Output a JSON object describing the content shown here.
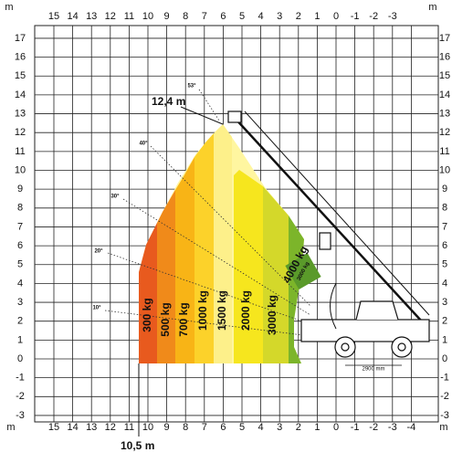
{
  "axis": {
    "unit": "m",
    "top_x": [
      15,
      14,
      13,
      12,
      11,
      10,
      9,
      8,
      7,
      6,
      5,
      4,
      3,
      2,
      1,
      0,
      -1,
      -2,
      -3
    ],
    "bottom_x": [
      15,
      14,
      13,
      12,
      11,
      10,
      9,
      8,
      7,
      6,
      5,
      4,
      3,
      2,
      1,
      0,
      -1,
      -2,
      -3,
      -4
    ],
    "y": [
      17,
      16,
      15,
      14,
      13,
      12,
      11,
      10,
      9,
      8,
      7,
      6,
      5,
      4,
      3,
      2,
      1,
      0,
      -1,
      -2,
      -3
    ]
  },
  "loads": [
    "300 kg",
    "500 kg",
    "700 kg",
    "1000 kg",
    "1500 kg",
    "2000 kg",
    "3000 kg",
    "4000 kg"
  ],
  "angles": [
    "53°",
    "40°",
    "30°",
    "20°",
    "10°"
  ],
  "annotations": {
    "max_height": "12,4 m",
    "max_reach": "10,5 m",
    "wheelbase": "2900 mm",
    "boom_load": "3000 kg"
  }
}
